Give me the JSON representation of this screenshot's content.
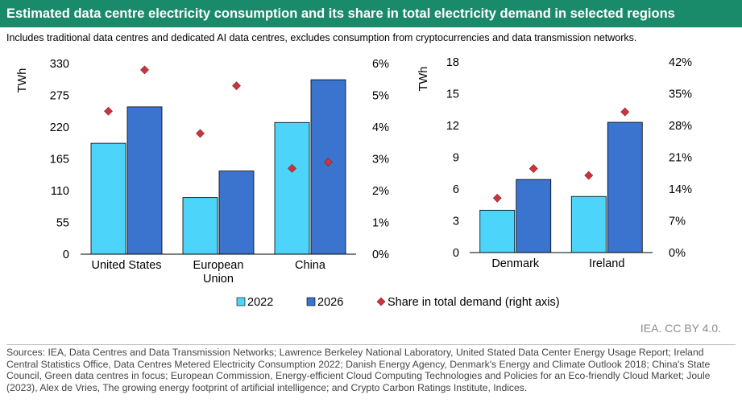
{
  "title": "Estimated data centre electricity consumption and its share in total electricity demand in selected regions",
  "subtitle": "Includes traditional data centres and dedicated AI data centres, excludes consumption from cryptocurrencies and data transmission networks.",
  "credit": "IEA. CC BY 4.0.",
  "sources": "Sources: IEA, Data Centres and Data Transmission Networks; Lawrence Berkeley National Laboratory, United Stated Data Center Energy Usage Report; Ireland Central Statistics Office, Data Centres Metered Electricity Consumption 2022; Danish Energy Agency, Denmark's Energy and Climate Outlook 2018; China's State Council, Green data centres in focus; European Commission, Energy-efficient Cloud Computing Technologies and Policies for an Eco-friendly Cloud Market; Joule (2023), Alex de Vries, The growing energy footprint of artificial intelligence; and Crypto Carbon Ratings Institute, Indices.",
  "colors": {
    "c2022": "#4dd4fa",
    "c2026": "#3a74cf",
    "share": "#c8363d",
    "title_bg": "#1a8b6a"
  },
  "legend": [
    {
      "label": "2022",
      "kind": "bar",
      "color": "#4dd4fa"
    },
    {
      "label": "2026",
      "kind": "bar",
      "color": "#3a74cf"
    },
    {
      "label": "Share in total demand (right axis)",
      "kind": "diamond",
      "color": "#c8363d"
    }
  ],
  "chart_data": [
    {
      "type": "bar",
      "ylabel": "TWh",
      "ylim": [
        0,
        330
      ],
      "yticks": [
        "0",
        "55",
        "110",
        "165",
        "220",
        "275",
        "330"
      ],
      "y2lim": [
        0,
        6
      ],
      "y2ticks": [
        "0%",
        "1%",
        "2%",
        "3%",
        "4%",
        "5%",
        "6%"
      ],
      "categories": [
        [
          "United States"
        ],
        [
          "European",
          "Union"
        ],
        [
          "China"
        ]
      ],
      "series": [
        {
          "name": "2022",
          "values": [
            192,
            98,
            228
          ]
        },
        {
          "name": "2026",
          "values": [
            255,
            144,
            302
          ]
        }
      ],
      "share": {
        "2022": [
          4.5,
          3.8,
          2.7
        ],
        "2026": [
          5.8,
          5.3,
          2.9
        ]
      }
    },
    {
      "type": "bar",
      "ylabel": "TWh",
      "ylim": [
        0,
        18
      ],
      "yticks": [
        "0",
        "3",
        "6",
        "9",
        "12",
        "15",
        "18"
      ],
      "y2lim": [
        0,
        42
      ],
      "y2ticks": [
        "0%",
        "7%",
        "14%",
        "21%",
        "28%",
        "35%",
        "42%"
      ],
      "categories": [
        [
          "Denmark"
        ],
        [
          "Ireland"
        ]
      ],
      "series": [
        {
          "name": "2022",
          "values": [
            4,
            5.3
          ]
        },
        {
          "name": "2026",
          "values": [
            6.9,
            12.3
          ]
        }
      ],
      "share": {
        "2022": [
          12,
          17
        ],
        "2026": [
          18.5,
          31
        ]
      }
    }
  ]
}
